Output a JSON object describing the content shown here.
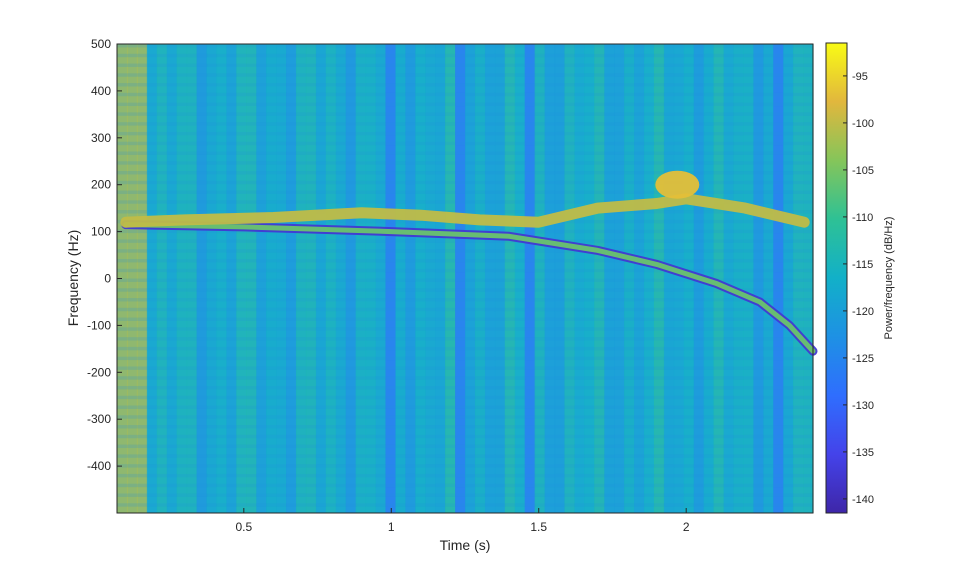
{
  "chart_data": {
    "type": "heatmap",
    "title": "",
    "xlabel": "Time (s)",
    "ylabel": "Frequency (Hz)",
    "colorbar_label": "Power/frequency (dB/Hz)",
    "colormap": "parula",
    "xlim": [
      0.07,
      2.43
    ],
    "ylim": [
      -500,
      500
    ],
    "x_ticks": [
      0.5,
      1,
      1.5,
      2
    ],
    "x_tick_labels": [
      "0.5",
      "1",
      "1.5",
      "2"
    ],
    "y_ticks": [
      500,
      400,
      300,
      200,
      100,
      0,
      -100,
      -200,
      -300,
      -400
    ],
    "y_tick_labels": [
      "500",
      "400",
      "300",
      "200",
      "100",
      "0",
      "-100",
      "-200",
      "-300",
      "-400"
    ],
    "clim": [
      -141.5,
      -91.5
    ],
    "colorbar_ticks": [
      -95,
      -100,
      -105,
      -110,
      -115,
      -120,
      -125,
      -130,
      -135,
      -140
    ],
    "colorbar_tick_labels": [
      "-95",
      "-100",
      "-105",
      "-110",
      "-115",
      "-120",
      "-125",
      "-130",
      "-135",
      "-140"
    ],
    "background_level_db": -117,
    "features": {
      "broadband_pulse": {
        "time_range_s": [
          0.08,
          0.18
        ],
        "level_db": -101
      },
      "upper_tone": {
        "level_db": -100,
        "points": [
          [
            0.1,
            120
          ],
          [
            0.3,
            125
          ],
          [
            0.6,
            130
          ],
          [
            0.9,
            140
          ],
          [
            1.1,
            135
          ],
          [
            1.3,
            125
          ],
          [
            1.5,
            120
          ],
          [
            1.7,
            150
          ],
          [
            1.9,
            160
          ],
          [
            2.0,
            170
          ],
          [
            2.2,
            150
          ],
          [
            2.4,
            120
          ]
        ]
      },
      "upper_tone_burst": {
        "center": [
          1.97,
          200
        ],
        "level_db": -97
      },
      "lower_chirp": {
        "level_db": -106,
        "points": [
          [
            0.1,
            115
          ],
          [
            0.5,
            110
          ],
          [
            1.0,
            100
          ],
          [
            1.4,
            90
          ],
          [
            1.7,
            60
          ],
          [
            1.9,
            30
          ],
          [
            2.1,
            -10
          ],
          [
            2.25,
            -50
          ],
          [
            2.35,
            -100
          ],
          [
            2.43,
            -155
          ]
        ]
      },
      "low_power_streaks_time_s": [
        0.99,
        1.24,
        1.46,
        2.32
      ]
    }
  }
}
